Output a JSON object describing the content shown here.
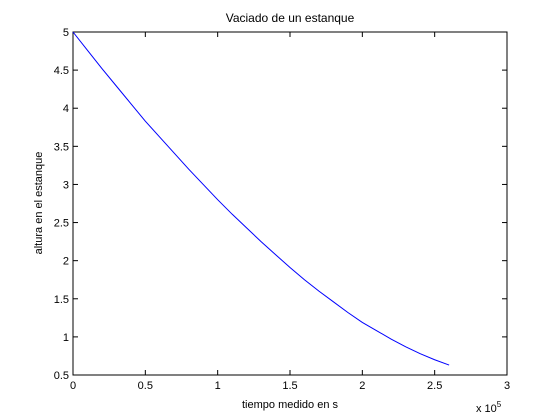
{
  "chart_data": {
    "type": "line",
    "title": "Vaciado de un estanque",
    "xlabel": "tiempo medido en s",
    "ylabel": "altura en el estanque",
    "x_exponent_base": "x 10",
    "x_exponent_power": "5",
    "xlim": [
      0,
      3
    ],
    "ylim": [
      0.5,
      5
    ],
    "xticks": [
      "0",
      "0.5",
      "1",
      "1.5",
      "2",
      "2.5",
      "3"
    ],
    "yticks": [
      "0.5",
      "1",
      "1.5",
      "2",
      "2.5",
      "3",
      "3.5",
      "4",
      "4.5",
      "5"
    ],
    "grid": false,
    "line_color": "#0000ff",
    "series": [
      {
        "x": [
          0,
          0.1,
          0.2,
          0.3,
          0.4,
          0.5,
          0.6,
          0.7,
          0.8,
          0.9,
          1.0,
          1.1,
          1.2,
          1.3,
          1.4,
          1.5,
          1.6,
          1.7,
          1.8,
          1.9,
          2.0,
          2.1,
          2.2,
          2.3,
          2.4,
          2.5,
          2.6
        ],
        "y": [
          5.0,
          4.76,
          4.52,
          4.29,
          4.06,
          3.83,
          3.62,
          3.41,
          3.2,
          3.0,
          2.8,
          2.61,
          2.43,
          2.25,
          2.08,
          1.91,
          1.75,
          1.6,
          1.46,
          1.32,
          1.19,
          1.08,
          0.97,
          0.87,
          0.78,
          0.7,
          0.63
        ]
      }
    ]
  }
}
